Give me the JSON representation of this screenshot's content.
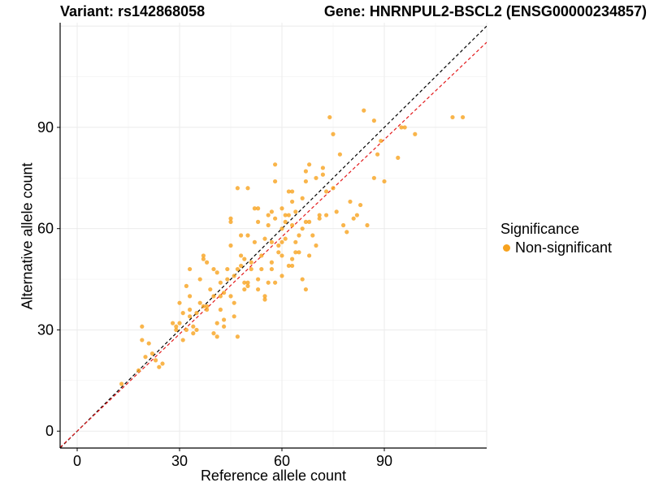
{
  "chart_data": {
    "type": "scatter",
    "title_left": "Variant: rs142868058",
    "title_right": "Gene: HNRNPUL2-BSCL2 (ENSG00000234857)",
    "xlabel": "Reference allele count",
    "ylabel": "Alternative allele count",
    "xlim": [
      -5,
      120
    ],
    "ylim": [
      -5,
      121
    ],
    "xticks": [
      0,
      30,
      60,
      90
    ],
    "yticks": [
      0,
      30,
      60,
      90
    ],
    "grid": true,
    "legend": {
      "title": "Significance",
      "placement": "right",
      "entries": [
        {
          "label": "Non-significant",
          "color": "#F7A21E"
        }
      ]
    },
    "reference_lines": [
      {
        "type": "identity",
        "slope": 1,
        "intercept": 0,
        "color": "#000000",
        "style": "dashed"
      },
      {
        "type": "fit",
        "slope": 0.96,
        "intercept": 0,
        "color": "#E31A1C",
        "style": "dashed"
      }
    ],
    "series": [
      {
        "color": "#F7A21E",
        "points": [
          [
            13,
            14
          ],
          [
            18,
            18
          ],
          [
            19,
            27
          ],
          [
            19,
            31
          ],
          [
            20,
            22
          ],
          [
            21,
            26
          ],
          [
            22,
            23
          ],
          [
            23,
            21
          ],
          [
            24,
            19
          ],
          [
            25,
            20
          ],
          [
            28,
            32
          ],
          [
            29,
            31
          ],
          [
            29,
            30
          ],
          [
            30,
            38
          ],
          [
            30,
            32
          ],
          [
            31,
            27
          ],
          [
            31,
            35
          ],
          [
            32,
            43
          ],
          [
            32,
            30
          ],
          [
            33,
            34
          ],
          [
            33,
            36
          ],
          [
            33,
            40
          ],
          [
            33,
            48
          ],
          [
            34,
            29
          ],
          [
            34,
            31
          ],
          [
            35,
            35
          ],
          [
            35,
            30
          ],
          [
            36,
            38
          ],
          [
            36,
            45
          ],
          [
            37,
            37
          ],
          [
            37,
            51
          ],
          [
            37,
            52
          ],
          [
            38,
            36
          ],
          [
            38,
            50
          ],
          [
            38,
            37
          ],
          [
            39,
            42
          ],
          [
            40,
            40
          ],
          [
            40,
            48
          ],
          [
            40,
            29
          ],
          [
            41,
            32
          ],
          [
            41,
            28
          ],
          [
            41,
            47
          ],
          [
            42,
            40
          ],
          [
            42,
            44
          ],
          [
            42,
            36
          ],
          [
            43,
            41
          ],
          [
            43,
            33
          ],
          [
            43,
            31
          ],
          [
            44,
            45
          ],
          [
            44,
            48
          ],
          [
            45,
            55
          ],
          [
            45,
            62
          ],
          [
            45,
            63
          ],
          [
            45,
            40
          ],
          [
            46,
            46
          ],
          [
            46,
            34
          ],
          [
            46,
            38
          ],
          [
            47,
            28
          ],
          [
            47,
            72
          ],
          [
            47,
            48
          ],
          [
            48,
            52
          ],
          [
            48,
            49
          ],
          [
            48,
            58
          ],
          [
            49,
            44
          ],
          [
            49,
            42
          ],
          [
            49,
            51
          ],
          [
            50,
            72
          ],
          [
            50,
            58
          ],
          [
            50,
            44
          ],
          [
            50,
            43
          ],
          [
            51,
            50
          ],
          [
            51,
            48
          ],
          [
            52,
            66
          ],
          [
            52,
            56
          ],
          [
            53,
            66
          ],
          [
            53,
            62
          ],
          [
            53,
            45
          ],
          [
            53,
            42
          ],
          [
            54,
            52
          ],
          [
            54,
            48
          ],
          [
            55,
            57
          ],
          [
            55,
            40
          ],
          [
            55,
            39
          ],
          [
            56,
            61
          ],
          [
            56,
            64
          ],
          [
            56,
            44
          ],
          [
            57,
            65
          ],
          [
            57,
            56
          ],
          [
            57,
            50
          ],
          [
            57,
            48
          ],
          [
            58,
            79
          ],
          [
            58,
            74
          ],
          [
            58,
            63
          ],
          [
            58,
            44
          ],
          [
            59,
            55
          ],
          [
            59,
            53
          ],
          [
            60,
            56
          ],
          [
            60,
            60
          ],
          [
            60,
            66
          ],
          [
            60,
            52
          ],
          [
            60,
            46
          ],
          [
            61,
            64
          ],
          [
            61,
            57
          ],
          [
            61,
            62
          ],
          [
            62,
            71
          ],
          [
            62,
            64
          ],
          [
            62,
            49
          ],
          [
            63,
            71
          ],
          [
            63,
            68
          ],
          [
            63,
            61
          ],
          [
            63,
            49
          ],
          [
            63,
            51
          ],
          [
            64,
            53
          ],
          [
            64,
            56
          ],
          [
            64,
            65
          ],
          [
            65,
            58
          ],
          [
            65,
            53
          ],
          [
            66,
            69
          ],
          [
            66,
            45
          ],
          [
            66,
            60
          ],
          [
            67,
            42
          ],
          [
            67,
            62
          ],
          [
            67,
            74
          ],
          [
            67,
            77
          ],
          [
            68,
            79
          ],
          [
            68,
            62
          ],
          [
            68,
            52
          ],
          [
            69,
            58
          ],
          [
            70,
            55
          ],
          [
            70,
            75
          ],
          [
            71,
            63
          ],
          [
            71,
            64
          ],
          [
            72,
            76
          ],
          [
            72,
            78
          ],
          [
            73,
            71
          ],
          [
            73,
            64
          ],
          [
            74,
            93
          ],
          [
            75,
            88
          ],
          [
            75,
            72
          ],
          [
            76,
            65
          ],
          [
            77,
            82
          ],
          [
            78,
            61
          ],
          [
            79,
            59
          ],
          [
            80,
            68
          ],
          [
            81,
            63
          ],
          [
            82,
            64
          ],
          [
            83,
            67
          ],
          [
            84,
            95
          ],
          [
            85,
            61
          ],
          [
            87,
            75
          ],
          [
            87,
            92
          ],
          [
            88,
            82
          ],
          [
            89,
            86
          ],
          [
            90,
            74
          ],
          [
            94,
            81
          ],
          [
            95,
            90
          ],
          [
            96,
            90
          ],
          [
            99,
            88
          ],
          [
            110,
            93
          ],
          [
            113,
            93
          ]
        ]
      }
    ]
  }
}
